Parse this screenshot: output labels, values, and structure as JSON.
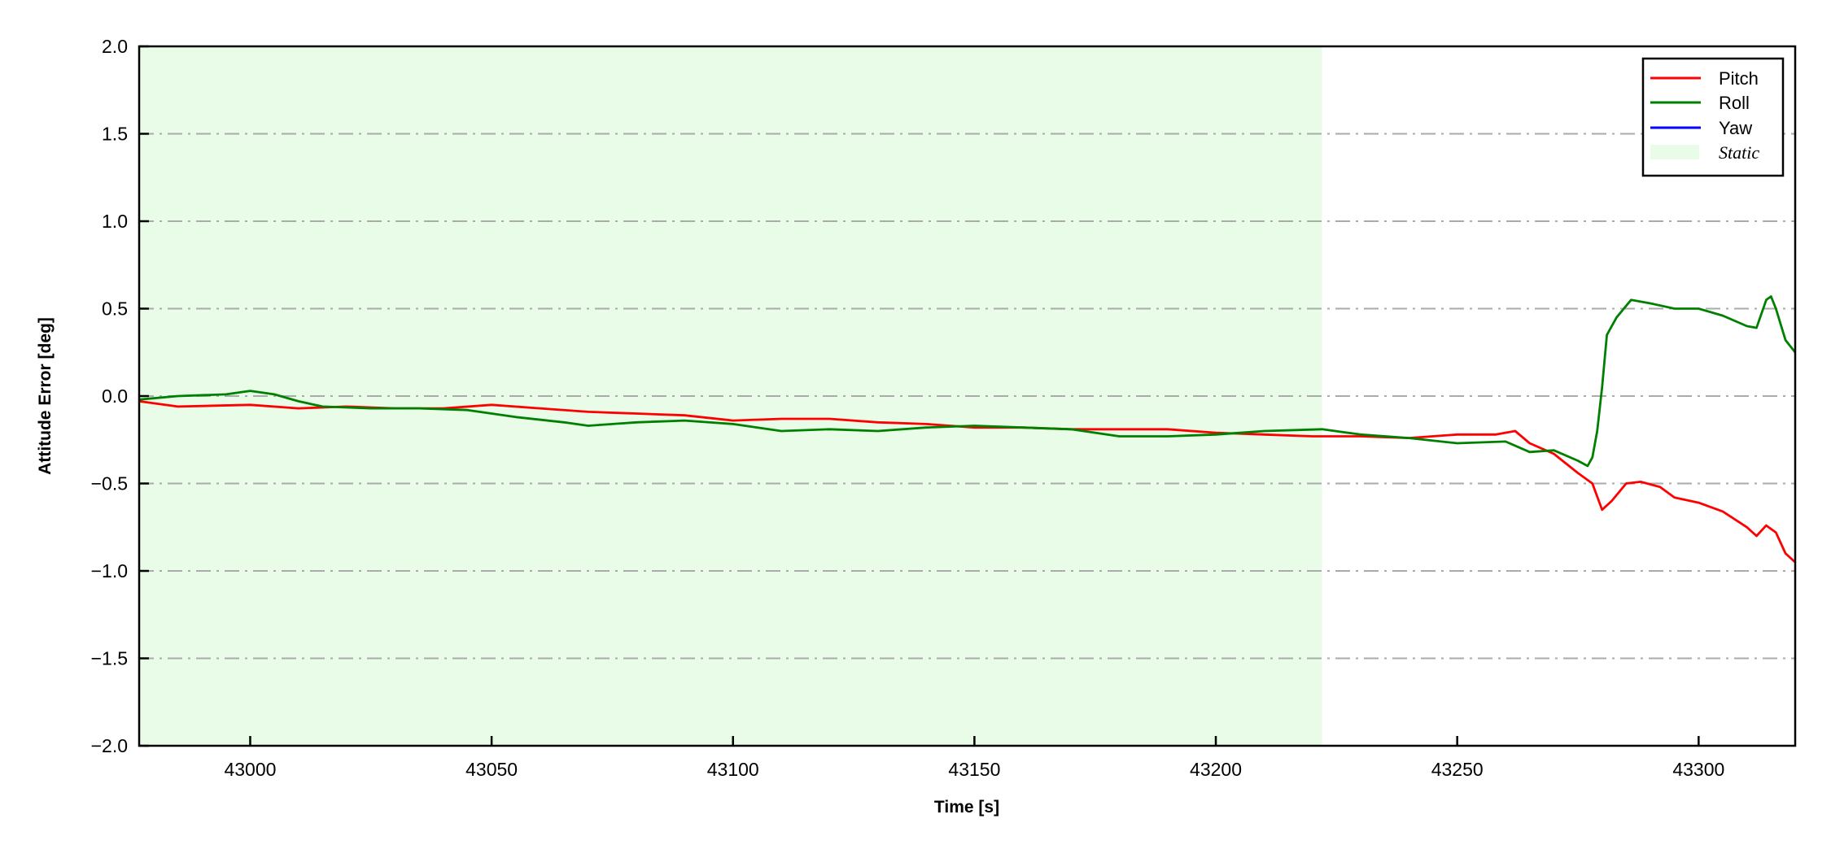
{
  "chart_data": {
    "type": "line",
    "title": "",
    "xlabel": "Time [s]",
    "ylabel": "Attitude Error [deg]",
    "xlim": [
      42977,
      43320
    ],
    "ylim": [
      -2.0,
      2.0
    ],
    "xticks": [
      43000,
      43050,
      43100,
      43150,
      43200,
      43250,
      43300
    ],
    "yticks": [
      -2.0,
      -1.5,
      -1.0,
      -0.5,
      0.0,
      0.5,
      1.0,
      1.5,
      2.0
    ],
    "ytick_labels": [
      "−2.0",
      "−1.5",
      "−1.0",
      "−0.5",
      "0.0",
      "0.5",
      "1.0",
      "1.5",
      "2.0"
    ],
    "grid": "horizontal dash-dot",
    "legend_position": "top-right",
    "static_region": {
      "label": "Static",
      "x_start": 42977,
      "x_end": 43222,
      "color": "#e8fce8"
    },
    "series": [
      {
        "name": "Pitch",
        "color": "#ff0000",
        "x": [
          42977,
          42985,
          43000,
          43010,
          43020,
          43030,
          43040,
          43050,
          43060,
          43070,
          43080,
          43090,
          43100,
          43110,
          43120,
          43130,
          43140,
          43150,
          43160,
          43170,
          43180,
          43190,
          43200,
          43210,
          43220,
          43230,
          43240,
          43250,
          43258,
          43262,
          43265,
          43270,
          43275,
          43278,
          43280,
          43282,
          43285,
          43288,
          43292,
          43295,
          43300,
          43305,
          43310,
          43312,
          43314,
          43316,
          43318,
          43320
        ],
        "y": [
          -0.03,
          -0.06,
          -0.05,
          -0.07,
          -0.06,
          -0.07,
          -0.07,
          -0.05,
          -0.07,
          -0.09,
          -0.1,
          -0.11,
          -0.14,
          -0.13,
          -0.13,
          -0.15,
          -0.16,
          -0.18,
          -0.18,
          -0.19,
          -0.19,
          -0.19,
          -0.21,
          -0.22,
          -0.23,
          -0.23,
          -0.24,
          -0.22,
          -0.22,
          -0.2,
          -0.27,
          -0.33,
          -0.44,
          -0.5,
          -0.65,
          -0.6,
          -0.5,
          -0.49,
          -0.52,
          -0.58,
          -0.61,
          -0.66,
          -0.75,
          -0.8,
          -0.74,
          -0.78,
          -0.9,
          -0.95
        ]
      },
      {
        "name": "Roll",
        "color": "#008000",
        "x": [
          42977,
          42985,
          42995,
          43000,
          43005,
          43010,
          43015,
          43025,
          43035,
          43045,
          43055,
          43065,
          43070,
          43080,
          43090,
          43100,
          43110,
          43120,
          43130,
          43140,
          43150,
          43160,
          43170,
          43180,
          43190,
          43200,
          43210,
          43222,
          43230,
          43240,
          43250,
          43260,
          43265,
          43270,
          43275,
          43277,
          43278,
          43279,
          43280,
          43281,
          43283,
          43286,
          43290,
          43295,
          43300,
          43305,
          43310,
          43312,
          43314,
          43315,
          43316,
          43318,
          43320
        ],
        "y": [
          -0.02,
          0.0,
          0.01,
          0.03,
          0.01,
          -0.03,
          -0.06,
          -0.07,
          -0.07,
          -0.08,
          -0.12,
          -0.15,
          -0.17,
          -0.15,
          -0.14,
          -0.16,
          -0.2,
          -0.19,
          -0.2,
          -0.18,
          -0.17,
          -0.18,
          -0.19,
          -0.23,
          -0.23,
          -0.22,
          -0.2,
          -0.19,
          -0.22,
          -0.24,
          -0.27,
          -0.26,
          -0.32,
          -0.31,
          -0.37,
          -0.4,
          -0.35,
          -0.2,
          0.05,
          0.35,
          0.45,
          0.55,
          0.53,
          0.5,
          0.5,
          0.46,
          0.4,
          0.39,
          0.55,
          0.57,
          0.5,
          0.32,
          0.25
        ]
      },
      {
        "name": "Yaw",
        "color": "#0000ff",
        "x": [],
        "y": []
      }
    ]
  }
}
